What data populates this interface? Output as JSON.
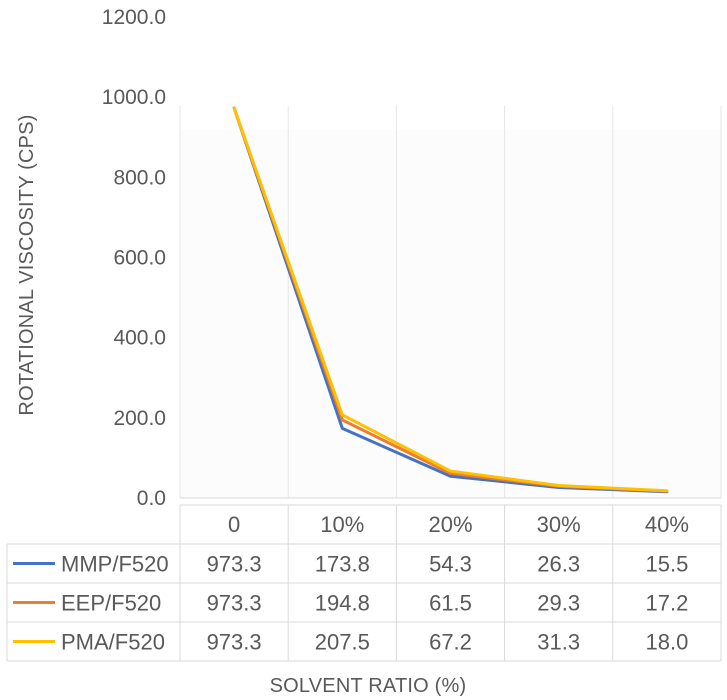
{
  "chart_data": {
    "type": "line",
    "title": "",
    "xlabel": "SOLVENT RATIO (%)",
    "ylabel": "ROTATIONAL VISCOSITY (CPS)",
    "ylim": [
      0,
      1200
    ],
    "yticks": [
      "0.0",
      "200.0",
      "400.0",
      "600.0",
      "800.0",
      "1000.0",
      "1200.0"
    ],
    "ytick_values": [
      0,
      200,
      400,
      600,
      800,
      1000,
      1200
    ],
    "categories": [
      "0",
      "10%",
      "20%",
      "30%",
      "40%"
    ],
    "grid": false,
    "legend": "data-table",
    "series": [
      {
        "name": "MMP/F520",
        "color": "#4472C4",
        "values": [
          973.3,
          173.8,
          54.3,
          26.3,
          15.5
        ],
        "labels": [
          "973.3",
          "173.8",
          "54.3",
          "26.3",
          "15.5"
        ]
      },
      {
        "name": "EEP/F520",
        "color": "#ED7D31",
        "values": [
          973.3,
          194.8,
          61.5,
          29.3,
          17.2
        ],
        "labels": [
          "973.3",
          "194.8",
          "61.5",
          "29.3",
          "17.2"
        ]
      },
      {
        "name": "PMA/F520",
        "color": "#FFC000",
        "values": [
          973.3,
          207.5,
          67.2,
          31.3,
          18.0
        ],
        "labels": [
          "973.3",
          "207.5",
          "67.2",
          "31.3",
          "18.0"
        ]
      }
    ]
  }
}
